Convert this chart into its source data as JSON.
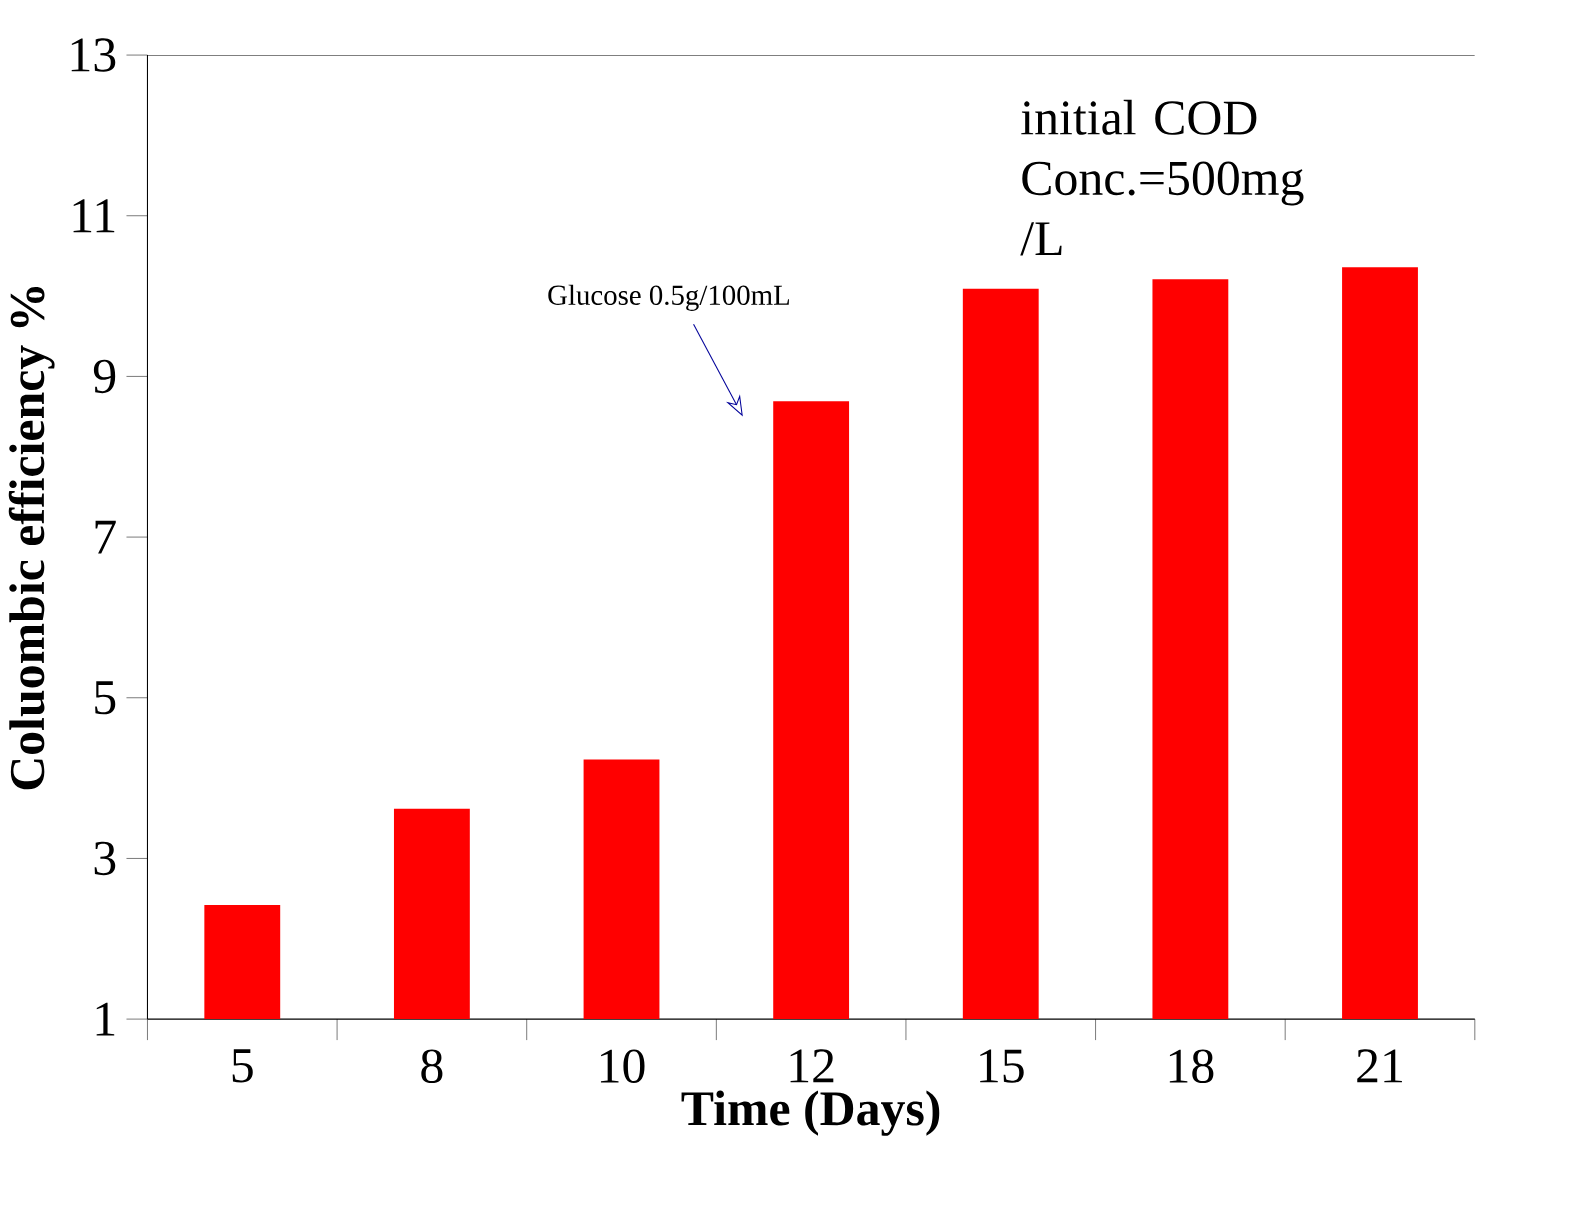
{
  "chart_data": {
    "type": "bar",
    "xlabel": "Time (Days)",
    "ylabel": "Coluombic efficiency %",
    "categories": [
      "5",
      "8",
      "10",
      "12",
      "15",
      "18",
      "21"
    ],
    "values": [
      2.42,
      3.62,
      4.23,
      8.69,
      10.09,
      10.21,
      10.36
    ],
    "color": "#ff0000",
    "ylim": [
      1,
      13
    ],
    "yticks": [
      1,
      3,
      5,
      7,
      9,
      11,
      13
    ],
    "grid": false,
    "annotations": [
      "Glucose 0.5g/100mL",
      "initial COD Conc.=500mg /L"
    ]
  }
}
